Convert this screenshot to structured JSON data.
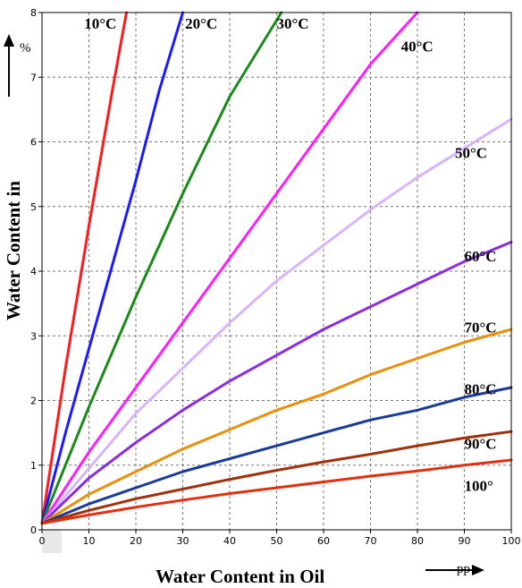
{
  "chart_data": {
    "type": "line",
    "xlabel": "Water Content in Oil",
    "ylabel": "Water Content in",
    "x_unit": "pp",
    "y_unit": "%",
    "xlim": [
      0,
      100
    ],
    "ylim": [
      0,
      8
    ],
    "x_ticks": [
      "0",
      "10",
      "20",
      "30",
      "40",
      "50",
      "60",
      "70",
      "80",
      "90",
      "100"
    ],
    "y_ticks": [
      "0",
      "1",
      "2",
      "3",
      "4",
      "5",
      "6",
      "7",
      "8"
    ],
    "grid": true,
    "series": [
      {
        "name": "10°C",
        "color": "#ff1a1a",
        "x": [
          0,
          5,
          10,
          15,
          18
        ],
        "y": [
          0.1,
          2.5,
          4.7,
          6.8,
          8.0
        ]
      },
      {
        "name": "20°C",
        "color": "#1a1aff",
        "x": [
          0,
          5,
          10,
          15,
          20,
          25,
          30
        ],
        "y": [
          0.1,
          1.5,
          2.8,
          4.1,
          5.4,
          6.8,
          8.0
        ]
      },
      {
        "name": "30°C",
        "color": "#1a8a1a",
        "x": [
          0,
          10,
          20,
          30,
          40,
          51
        ],
        "y": [
          0.1,
          1.9,
          3.6,
          5.2,
          6.7,
          8.0
        ]
      },
      {
        "name": "40°C",
        "color": "#ff1aff",
        "x": [
          0,
          10,
          20,
          30,
          40,
          50,
          60,
          70,
          80
        ],
        "y": [
          0.1,
          1.2,
          2.2,
          3.2,
          4.2,
          5.2,
          6.2,
          7.2,
          8.0
        ]
      },
      {
        "name": "50°C",
        "color": "#d8b4f8",
        "x": [
          0,
          10,
          20,
          30,
          40,
          50,
          60,
          70,
          80,
          90,
          100
        ],
        "y": [
          0.1,
          0.95,
          1.8,
          2.5,
          3.2,
          3.85,
          4.4,
          4.95,
          5.45,
          5.9,
          6.35
        ]
      },
      {
        "name": "60°C",
        "color": "#8a2be2",
        "x": [
          0,
          10,
          20,
          30,
          40,
          50,
          60,
          70,
          80,
          90,
          100
        ],
        "y": [
          0.1,
          0.8,
          1.35,
          1.85,
          2.3,
          2.7,
          3.1,
          3.45,
          3.8,
          4.15,
          4.45
        ]
      },
      {
        "name": "70°C",
        "color": "#e8900a",
        "x": [
          0,
          10,
          20,
          30,
          40,
          50,
          60,
          70,
          80,
          90,
          100
        ],
        "y": [
          0.1,
          0.55,
          0.9,
          1.25,
          1.55,
          1.85,
          2.1,
          2.4,
          2.65,
          2.9,
          3.1
        ]
      },
      {
        "name": "80°C",
        "color": "#1a3a9a",
        "x": [
          0,
          10,
          20,
          30,
          40,
          50,
          60,
          70,
          80,
          90,
          100
        ],
        "y": [
          0.1,
          0.4,
          0.65,
          0.9,
          1.1,
          1.3,
          1.5,
          1.7,
          1.85,
          2.05,
          2.2
        ]
      },
      {
        "name": "90°C",
        "color": "#a0300a",
        "x": [
          0,
          10,
          20,
          30,
          40,
          50,
          60,
          70,
          80,
          90,
          100
        ],
        "y": [
          0.1,
          0.3,
          0.48,
          0.63,
          0.78,
          0.92,
          1.05,
          1.17,
          1.3,
          1.42,
          1.52
        ]
      },
      {
        "name": "100°",
        "color": "#e03010",
        "x": [
          0,
          10,
          20,
          30,
          40,
          50,
          60,
          70,
          80,
          90,
          100
        ],
        "y": [
          0.1,
          0.23,
          0.35,
          0.46,
          0.56,
          0.65,
          0.74,
          0.83,
          0.91,
          1.0,
          1.08
        ]
      }
    ]
  }
}
